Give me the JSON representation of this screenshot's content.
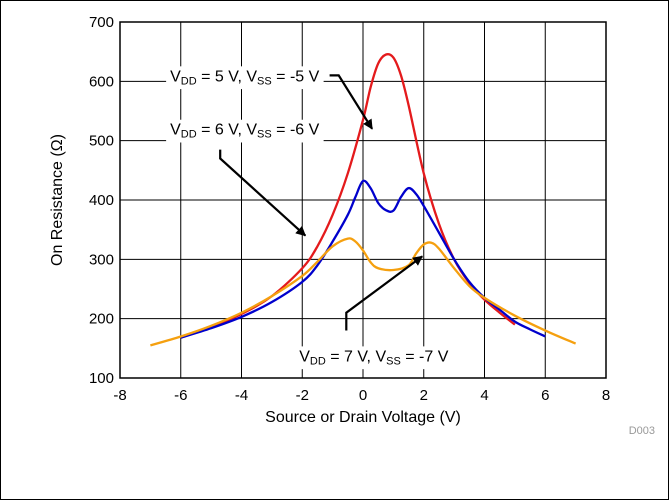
{
  "chart_data": {
    "type": "line",
    "xlabel": "Source or Drain Voltage (V)",
    "ylabel": "On Resistance (Ω)",
    "xlim": [
      -8,
      8
    ],
    "ylim": [
      100,
      700
    ],
    "x_ticks": [
      -8,
      -6,
      -4,
      -2,
      0,
      2,
      4,
      6,
      8
    ],
    "y_ticks": [
      100,
      200,
      300,
      400,
      500,
      600,
      700
    ],
    "grid": true,
    "figure_id": "D003",
    "series": [
      {
        "color": "#e41a1c",
        "label_parts": [
          "V",
          "DD",
          " = 5 V, V",
          "SS",
          " = -5 V"
        ],
        "x": [
          -6,
          -5,
          -4,
          -3,
          -2,
          -1.5,
          -1,
          -0.5,
          0,
          0.25,
          0.5,
          0.75,
          1,
          1.25,
          1.5,
          2,
          2.5,
          3,
          3.5,
          4,
          4.5,
          5
        ],
        "y": [
          168,
          186,
          208,
          238,
          285,
          322,
          375,
          445,
          535,
          590,
          630,
          645,
          640,
          610,
          560,
          445,
          360,
          300,
          260,
          232,
          210,
          190
        ]
      },
      {
        "color": "#0000cc",
        "label_parts": [
          "V",
          "DD",
          " = 6 V, V",
          "SS",
          " = -6 V"
        ],
        "x": [
          -6,
          -5,
          -4,
          -3,
          -2,
          -1.5,
          -1,
          -0.5,
          -0.25,
          0,
          0.25,
          0.5,
          0.75,
          1,
          1.25,
          1.5,
          1.75,
          2,
          2.5,
          3,
          3.5,
          4,
          4.5,
          5,
          5.5,
          6
        ],
        "y": [
          168,
          184,
          203,
          228,
          262,
          290,
          330,
          375,
          405,
          432,
          420,
          395,
          383,
          382,
          405,
          420,
          410,
          390,
          345,
          300,
          262,
          235,
          215,
          195,
          182,
          170
        ]
      },
      {
        "color": "#f5a00f",
        "label_parts": [
          "V",
          "DD",
          " = 7 V, V",
          "SS",
          " = -7 V"
        ],
        "x": [
          -7,
          -6,
          -5,
          -4,
          -3,
          -2,
          -1.5,
          -1,
          -0.5,
          -0.25,
          0,
          0.25,
          0.5,
          1,
          1.5,
          1.75,
          2,
          2.25,
          2.5,
          3,
          3.5,
          4,
          5,
          6,
          7
        ],
        "y": [
          155,
          170,
          188,
          210,
          238,
          272,
          296,
          322,
          335,
          330,
          315,
          295,
          285,
          282,
          290,
          310,
          325,
          328,
          318,
          285,
          255,
          235,
          205,
          180,
          158
        ]
      }
    ],
    "annotations": [
      {
        "label_parts": [
          "V",
          "DD",
          " = 5 V, V",
          "SS",
          " = -5 V"
        ],
        "text_x": -6.35,
        "text_y": 600,
        "arrow": [
          [
            -1.1,
            610
          ],
          [
            -0.8,
            610
          ],
          [
            0.3,
            520
          ]
        ]
      },
      {
        "label_parts": [
          "V",
          "DD",
          " = 6 V, V",
          "SS",
          " = -6 V"
        ],
        "text_x": -6.35,
        "text_y": 510,
        "arrow": [
          [
            -4.7,
            485
          ],
          [
            -4.7,
            470
          ],
          [
            -1.9,
            340
          ]
        ]
      },
      {
        "label_parts": [
          "V",
          "DD",
          " = 7 V, V",
          "SS",
          " = -7 V"
        ],
        "text_x": -2.1,
        "text_y": 128,
        "arrow": [
          [
            -0.55,
            180
          ],
          [
            -0.55,
            210
          ],
          [
            1.95,
            305
          ]
        ]
      }
    ]
  }
}
